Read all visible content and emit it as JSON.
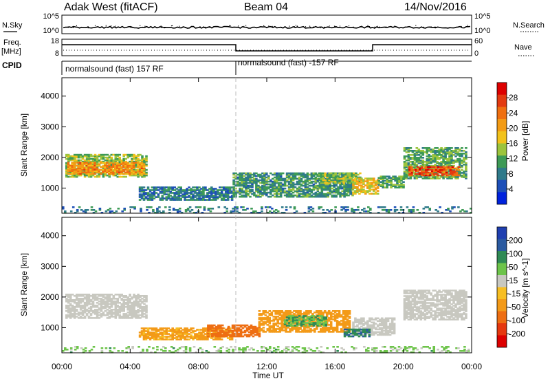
{
  "header": {
    "station": "Adak West (fitACF)",
    "beam": "Beam 04",
    "date": "14/Nov/2016"
  },
  "noise_panel": {
    "left_label": "N.Sky",
    "right_label": "N.Search",
    "left_ticks": [
      "10^5",
      "10^0"
    ],
    "right_ticks": [
      "10^5",
      "10^0"
    ]
  },
  "freq_panel": {
    "left_label_1": "Freq.",
    "left_label_2": "[MHz]",
    "right_label": "Nave",
    "left_ticks": [
      "18",
      "8"
    ],
    "right_ticks": [
      "60",
      "0"
    ]
  },
  "cpid": {
    "label": "CPID",
    "segments": [
      {
        "label": "normalsound (fast) 157 RF",
        "start_hour": 0,
        "end_hour": 10
      },
      {
        "label": "normalsound (fast) -157 RF",
        "start_hour": 10,
        "end_hour": 24
      }
    ]
  },
  "colors": {
    "power_scale": [
      "#0022dd",
      "#1d4fb8",
      "#2f7a8a",
      "#3d9a56",
      "#9cc43c",
      "#f2c21a",
      "#f39b14",
      "#ef6f10",
      "#e33a10",
      "#dd0000"
    ],
    "velocity_scale": [
      "#1f3fb0",
      "#2a5aa0",
      "#2f8a55",
      "#6dc44a",
      "#c8c8c0",
      "#f7be22",
      "#f39a18",
      "#ee6e12",
      "#e6380f",
      "#dd0000"
    ]
  },
  "chart_data": [
    {
      "type": "heatmap",
      "name": "power",
      "xlabel": "Time UT",
      "ylabel": "Slant Range [km]",
      "x_ticks": [
        "00:00",
        "04:00",
        "08:00",
        "12:00",
        "16:00",
        "20:00",
        "00:00"
      ],
      "xlim": [
        0,
        24
      ],
      "ylim": [
        180,
        4600
      ],
      "y_ticks": [
        1000,
        2000,
        3000,
        4000
      ],
      "colorbar": {
        "label": "Power [dB]",
        "ticks": [
          4,
          8,
          12,
          16,
          20,
          24,
          28
        ],
        "range": [
          0,
          32
        ]
      },
      "regions": [
        {
          "x0": 0.2,
          "x1": 5.0,
          "y0": 1350,
          "y1": 2100,
          "value": 14
        },
        {
          "x0": 0.3,
          "x1": 4.8,
          "y0": 1450,
          "y1": 1850,
          "value": 22
        },
        {
          "x0": 4.5,
          "x1": 10.0,
          "y0": 600,
          "y1": 1050,
          "value": 8
        },
        {
          "x0": 10.0,
          "x1": 17.0,
          "y0": 700,
          "y1": 1500,
          "value": 10
        },
        {
          "x0": 15.0,
          "x1": 17.5,
          "y0": 1150,
          "y1": 1500,
          "value": 14
        },
        {
          "x0": 17.0,
          "x1": 18.5,
          "y0": 800,
          "y1": 1300,
          "value": 18
        },
        {
          "x0": 18.5,
          "x1": 20.0,
          "y0": 1000,
          "y1": 1400,
          "value": 12
        },
        {
          "x0": 20.0,
          "x1": 23.7,
          "y0": 1300,
          "y1": 2300,
          "value": 12
        },
        {
          "x0": 20.3,
          "x1": 23.3,
          "y0": 1400,
          "y1": 1700,
          "value": 26
        },
        {
          "x0": 0.0,
          "x1": 24.0,
          "y0": 180,
          "y1": 380,
          "value": 8
        }
      ]
    },
    {
      "type": "heatmap",
      "name": "velocity",
      "xlabel": "Time UT",
      "ylabel": "Slant Range [km]",
      "x_ticks": [
        "00:00",
        "04:00",
        "08:00",
        "12:00",
        "16:00",
        "20:00",
        "00:00"
      ],
      "xlim": [
        0,
        24
      ],
      "ylim": [
        180,
        4600
      ],
      "y_ticks": [
        1000,
        2000,
        3000,
        4000
      ],
      "colorbar": {
        "label": "Velocity [m s^-1]",
        "ticks": [
          "200",
          "100",
          "50",
          "15",
          "-15",
          "-50",
          "-100",
          "-200"
        ]
      },
      "regions": [
        {
          "x0": 0.2,
          "x1": 5.0,
          "y0": 1300,
          "y1": 2100,
          "value": 0
        },
        {
          "x0": 4.5,
          "x1": 10.0,
          "y0": 600,
          "y1": 1000,
          "value": -40
        },
        {
          "x0": 8.5,
          "x1": 11.5,
          "y0": 700,
          "y1": 1100,
          "value": -90
        },
        {
          "x0": 11.5,
          "x1": 16.8,
          "y0": 850,
          "y1": 1550,
          "value": -50
        },
        {
          "x0": 13.0,
          "x1": 15.5,
          "y0": 1050,
          "y1": 1400,
          "value": 30
        },
        {
          "x0": 17.0,
          "x1": 19.5,
          "y0": 750,
          "y1": 1300,
          "value": 0
        },
        {
          "x0": 16.5,
          "x1": 18.0,
          "y0": 700,
          "y1": 950,
          "value": 70
        },
        {
          "x0": 20.0,
          "x1": 23.7,
          "y0": 1250,
          "y1": 2200,
          "value": 0
        },
        {
          "x0": 0.0,
          "x1": 24.0,
          "y0": 180,
          "y1": 380,
          "value": 20
        }
      ]
    }
  ]
}
